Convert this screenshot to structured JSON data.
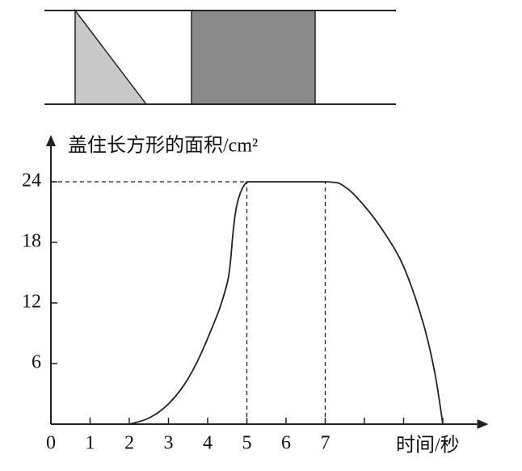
{
  "chart_data": {
    "type": "line",
    "y_label": "盖住长方形的面积/cm²",
    "x_label": "时间/秒",
    "series": [
      {
        "x": [
          2,
          2.5,
          3,
          3.5,
          4,
          4.5,
          5,
          7,
          7.5,
          8,
          8.5,
          9,
          9.5,
          9.8,
          10
        ],
        "values": [
          0,
          0.6,
          2,
          4.5,
          8.5,
          14,
          24,
          24,
          23.5,
          21.6,
          19,
          15.6,
          10,
          5,
          0
        ],
        "color": "#222"
      }
    ],
    "xlim": [
      0,
      11
    ],
    "ylim": [
      0,
      28
    ],
    "xticks": [
      0,
      1,
      2,
      3,
      4,
      5,
      6,
      7
    ],
    "xticks_unlabeled": [
      8,
      9,
      10
    ],
    "yticks": [
      6,
      12,
      18,
      24
    ],
    "dashed_guides": [
      [
        5,
        24
      ],
      [
        7,
        24
      ]
    ]
  }
}
